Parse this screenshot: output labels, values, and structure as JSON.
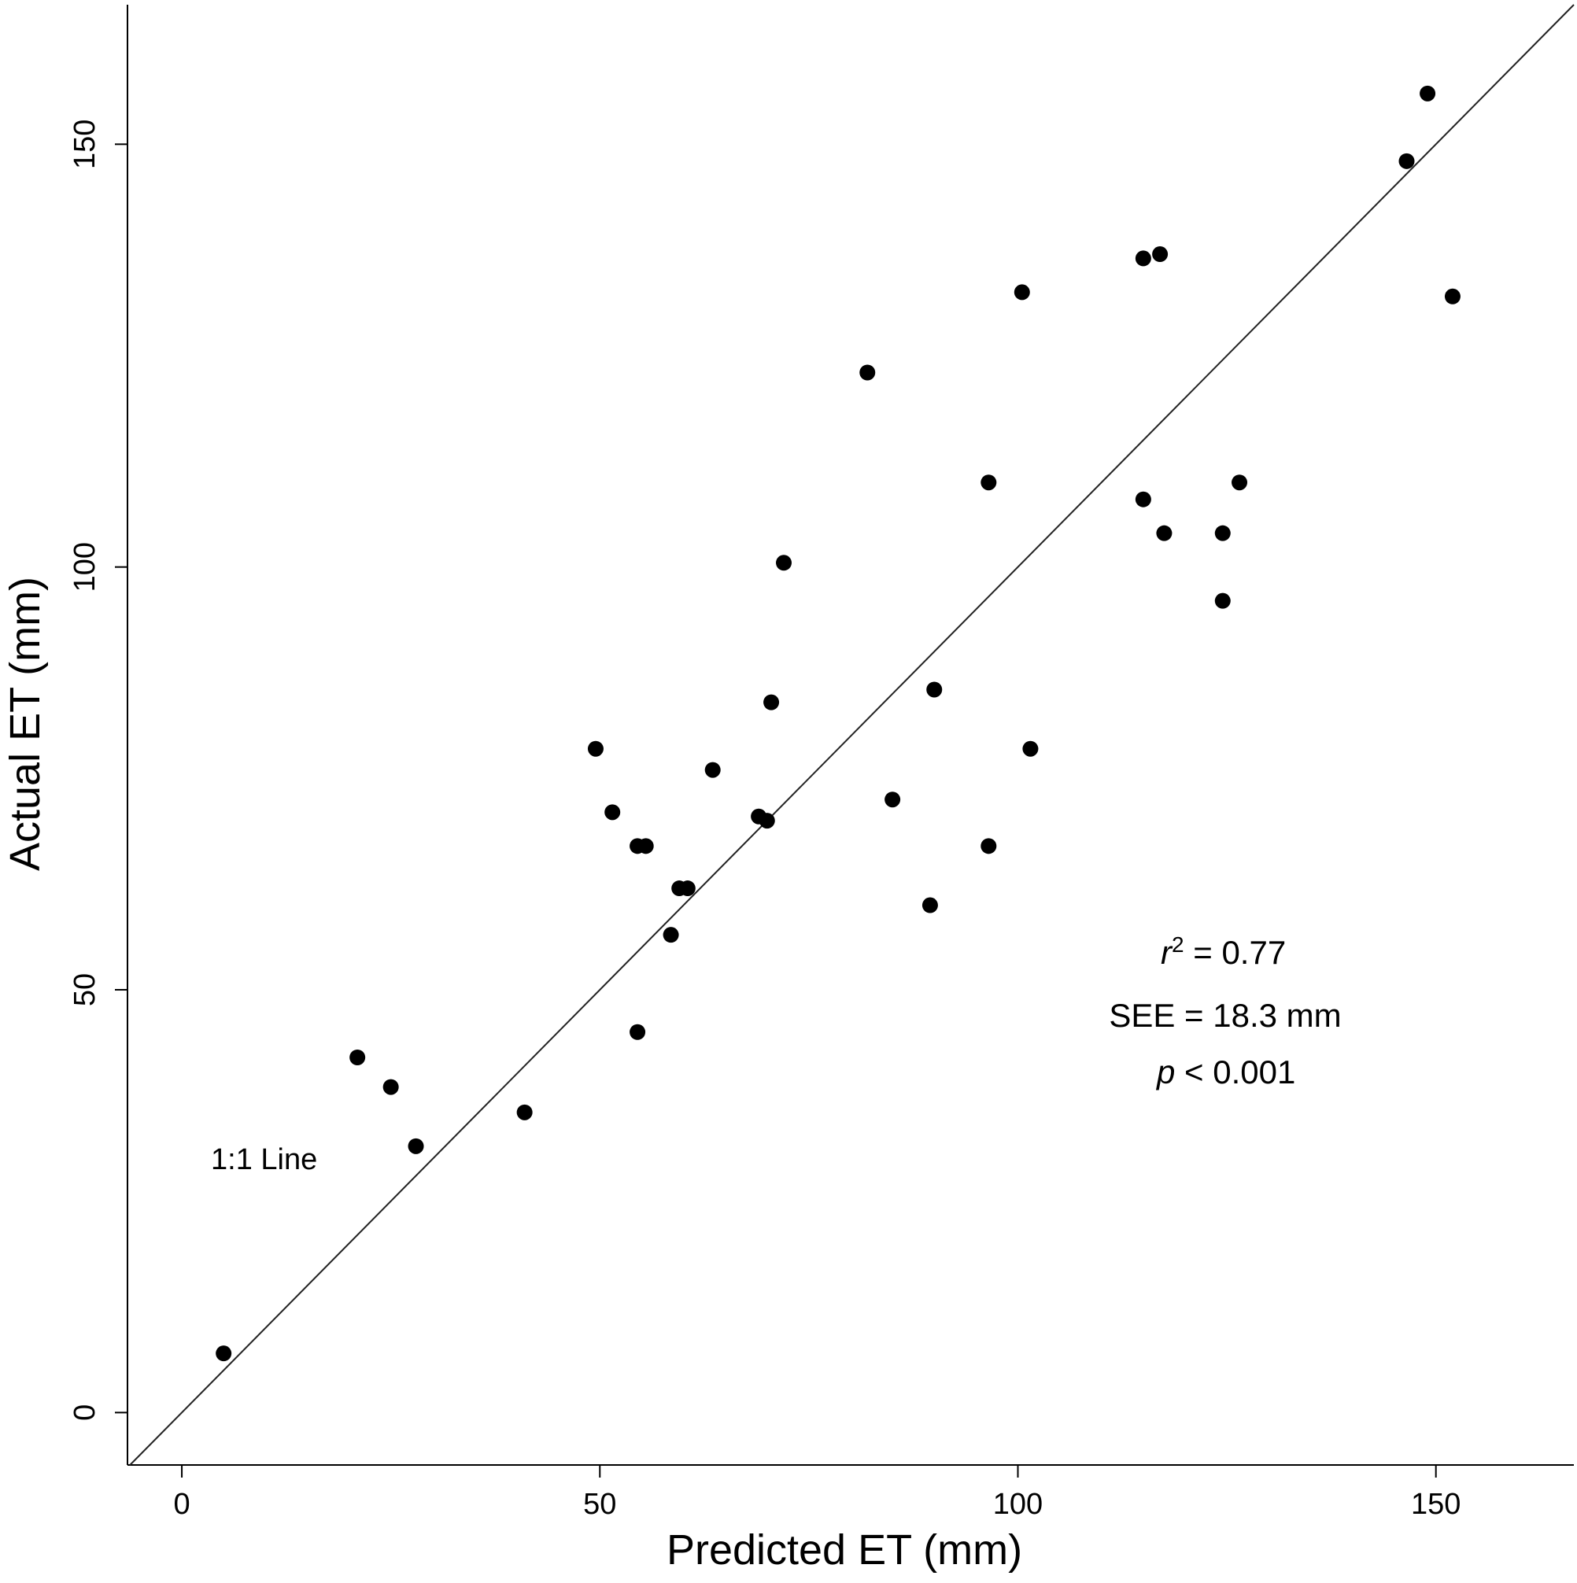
{
  "chart_data": {
    "type": "scatter",
    "title": "",
    "xlabel": "Predicted ET (mm)",
    "ylabel": "Actual ET (mm)",
    "xlim": [
      -6.5,
      166.5
    ],
    "ylim": [
      -6.2,
      166.5
    ],
    "x_ticks": [
      0,
      50,
      100,
      150
    ],
    "y_ticks": [
      0,
      50,
      100,
      150
    ],
    "x_tick_labels": [
      "0",
      "50",
      "100",
      "150"
    ],
    "y_tick_labels": [
      "0",
      "50",
      "100",
      "150"
    ],
    "grid": false,
    "reference_line": {
      "label": "1:1 Line",
      "slope": 1,
      "intercept": 0
    },
    "stats": {
      "r2_symbol": "r",
      "r2_sup": "2",
      "r2_rest": " = 0.77",
      "see": "SEE = 18.3 mm",
      "p_symbol": "p",
      "p_rest": " < 0.001"
    },
    "points": [
      [
        5,
        7
      ],
      [
        21,
        42
      ],
      [
        25,
        38.5
      ],
      [
        28,
        31.5
      ],
      [
        41,
        35.5
      ],
      [
        49.5,
        78.5
      ],
      [
        51.5,
        71
      ],
      [
        54.5,
        67
      ],
      [
        55.5,
        67
      ],
      [
        54.5,
        45
      ],
      [
        58.5,
        56.5
      ],
      [
        59.5,
        62
      ],
      [
        60.5,
        62
      ],
      [
        63.5,
        76
      ],
      [
        69,
        70.5
      ],
      [
        70,
        70
      ],
      [
        70.5,
        84
      ],
      [
        72,
        100.5
      ],
      [
        82,
        123
      ],
      [
        85,
        72.5
      ],
      [
        89.5,
        60
      ],
      [
        90,
        85.5
      ],
      [
        96.5,
        67
      ],
      [
        96.5,
        110
      ],
      [
        100.5,
        132.5
      ],
      [
        101.5,
        78.5
      ],
      [
        115,
        108
      ],
      [
        115,
        136.5
      ],
      [
        117,
        137
      ],
      [
        117.5,
        104
      ],
      [
        124.5,
        104
      ],
      [
        124.5,
        96
      ],
      [
        126.5,
        110
      ],
      [
        146.5,
        148
      ],
      [
        149,
        156
      ],
      [
        152,
        132
      ]
    ],
    "marker_color": "#000000",
    "line_color": "#222222"
  }
}
